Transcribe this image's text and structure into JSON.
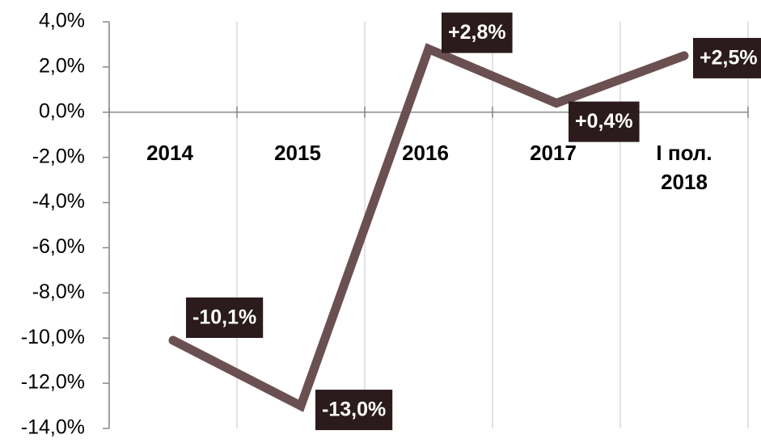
{
  "chart_data": {
    "type": "line",
    "categories": [
      "2014",
      "2015",
      "2016",
      "2017",
      "I пол. 2018"
    ],
    "series": [
      {
        "color": "#6b5052",
        "values": [
          -10.1,
          -13.0,
          2.8,
          0.4,
          2.5
        ],
        "value_labels": [
          "-10,1%",
          "-13,0%",
          "+2,8%",
          "+0,4%",
          "+2,5%"
        ]
      }
    ],
    "ylim": [
      -14,
      4
    ],
    "yticks": [
      {
        "value": -14,
        "label": "-14,0%"
      },
      {
        "value": -12,
        "label": "-12,0%"
      },
      {
        "value": -10,
        "label": "-10,0%"
      },
      {
        "value": -8,
        "label": "-8,0%"
      },
      {
        "value": -6,
        "label": "-6,0%"
      },
      {
        "value": -4,
        "label": "-4,0%"
      },
      {
        "value": -2,
        "label": "-2,0%"
      },
      {
        "value": 0,
        "label": "0,0%"
      },
      {
        "value": 2,
        "label": "2,0%"
      },
      {
        "value": 4,
        "label": "4,0%"
      }
    ]
  }
}
